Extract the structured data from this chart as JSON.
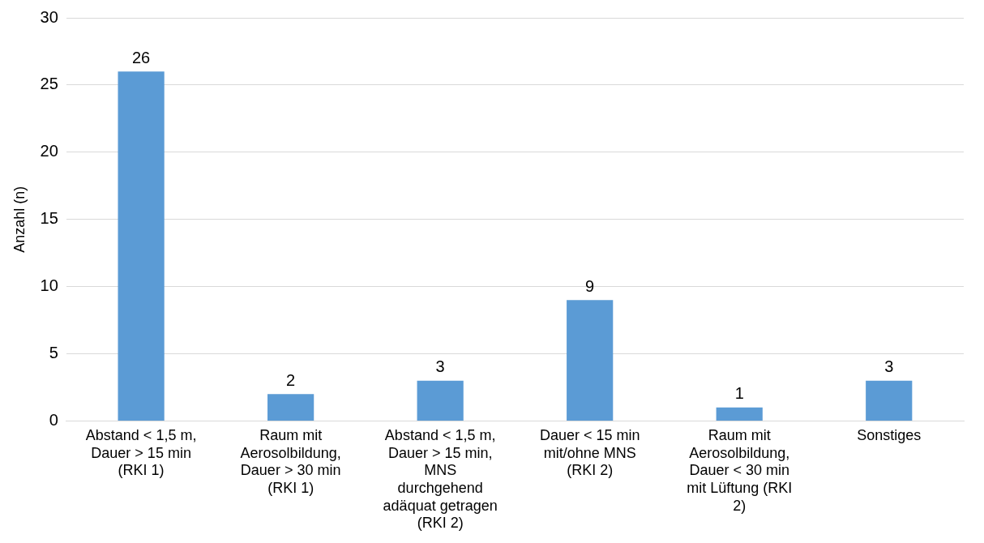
{
  "chart_data": {
    "type": "bar",
    "ylabel": "Anzahl (n)",
    "categories": [
      "Abstand < 1,5 m, Dauer > 15 min (RKI 1)",
      "Raum mit Aerosolbildung, Dauer > 30 min (RKI 1)",
      "Abstand < 1,5 m, Dauer > 15 min, MNS durchgehend adäquat getragen (RKI 2)",
      "Dauer < 15 min mit/ohne MNS (RKI 2)",
      "Raum mit Aerosolbildung, Dauer < 30 min mit Lüftung (RKI 2)",
      "Sonstiges"
    ],
    "values": [
      26,
      2,
      3,
      9,
      1,
      3
    ],
    "color": "#5b9bd5",
    "ylim": [
      0,
      30
    ],
    "yticks": [
      0,
      5,
      10,
      15,
      20,
      25,
      30
    ],
    "grid": "y",
    "legend": false,
    "data_labels": true
  }
}
